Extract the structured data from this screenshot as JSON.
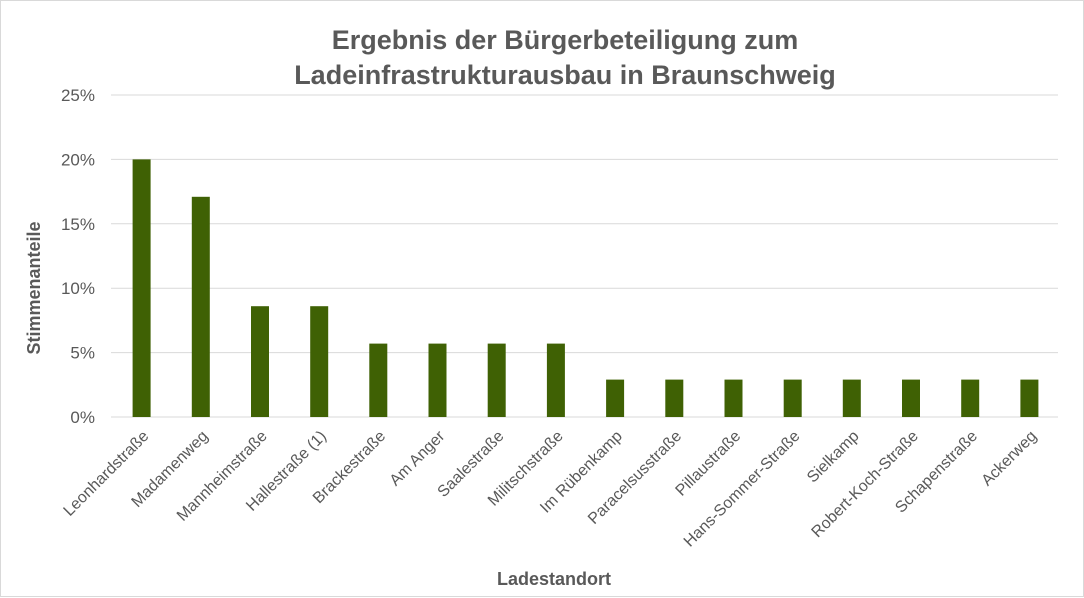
{
  "chart_data": {
    "type": "bar",
    "title_lines": [
      "Ergebnis der Bürgerbeteiligung zum",
      "Ladeinfrastrukturausbau in Braunschweig"
    ],
    "xlabel": "Ladestandort",
    "ylabel": "Stimmenanteile",
    "ylim": [
      0,
      25
    ],
    "yticks": [
      0,
      5,
      10,
      15,
      20,
      25
    ],
    "ytick_labels": [
      "0%",
      "5%",
      "10%",
      "15%",
      "20%",
      "25%"
    ],
    "grid": true,
    "legend": "none",
    "bar_color": "#3f6104",
    "grid_color": "#d9d9d9",
    "categories": [
      "Leonhardstraße",
      "Madamenweg",
      "Mannheimstraße",
      "Hallestraße (1)",
      "Brackestraße",
      "Am Anger",
      "Saalestraße",
      "Militschstraße",
      "Im Rübenkamp",
      "Paracelsusstraße",
      "Pillaustraße",
      "Hans-Sommer-Straße",
      "Sielkamp",
      "Robert-Koch-Straße",
      "Schapenstraße",
      "Ackerweg"
    ],
    "values": [
      20.0,
      17.1,
      8.6,
      8.6,
      5.7,
      5.7,
      5.7,
      5.7,
      2.9,
      2.9,
      2.9,
      2.9,
      2.9,
      2.9,
      2.9,
      2.9
    ]
  }
}
